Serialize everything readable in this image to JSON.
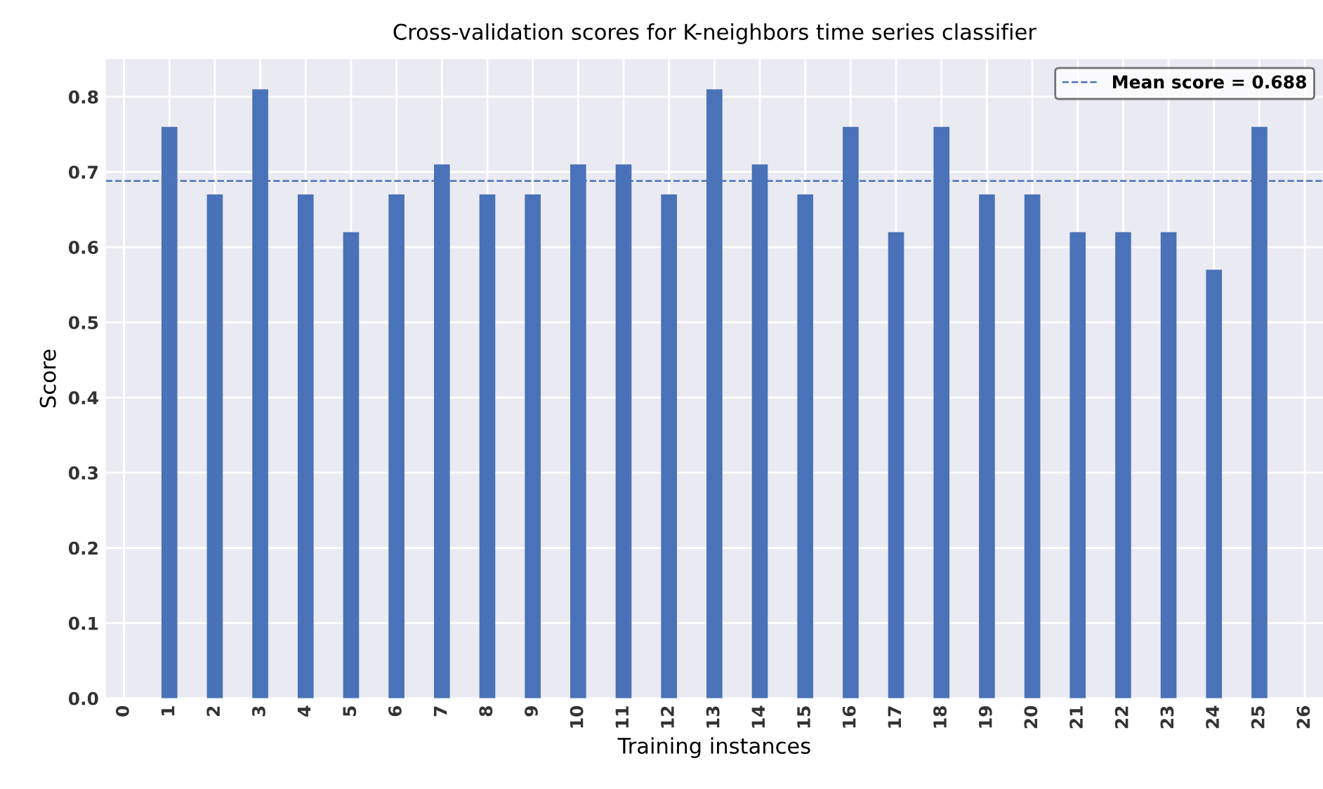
{
  "chart_data": {
    "type": "bar",
    "title": "Cross-validation scores for K-neighbors time series classifier",
    "xlabel": "Training instances",
    "ylabel": "Score",
    "x": [
      1,
      2,
      3,
      4,
      5,
      6,
      7,
      8,
      9,
      10,
      11,
      12,
      13,
      14,
      15,
      16,
      17,
      18,
      19,
      20,
      21,
      22,
      23,
      24,
      25
    ],
    "series": [
      {
        "color": "#4a72b8",
        "values": [
          0.76,
          0.67,
          0.81,
          0.67,
          0.62,
          0.67,
          0.71,
          0.67,
          0.67,
          0.71,
          0.71,
          0.67,
          0.81,
          0.71,
          0.67,
          0.76,
          0.62,
          0.76,
          0.67,
          0.67,
          0.62,
          0.62,
          0.62,
          0.57,
          0.76
        ]
      }
    ],
    "xlim": [
      -0.4,
      26.4
    ],
    "xticks": [
      0,
      1,
      2,
      3,
      4,
      5,
      6,
      7,
      8,
      9,
      10,
      11,
      12,
      13,
      14,
      15,
      16,
      17,
      18,
      19,
      20,
      21,
      22,
      23,
      24,
      25,
      26
    ],
    "ylim": [
      0,
      0.85
    ],
    "yticks": [
      {
        "value": 0,
        "label": "0.0"
      },
      0.1,
      0.2,
      0.3,
      0.4,
      0.5,
      0.6,
      0.7,
      0.8
    ],
    "ref_lines": [
      {
        "axis": "y",
        "value": 0.688,
        "label": "Mean score = 0.688",
        "color": "#4a72b8",
        "line_style": "dashed"
      }
    ],
    "grid": true,
    "legend": "top right"
  }
}
